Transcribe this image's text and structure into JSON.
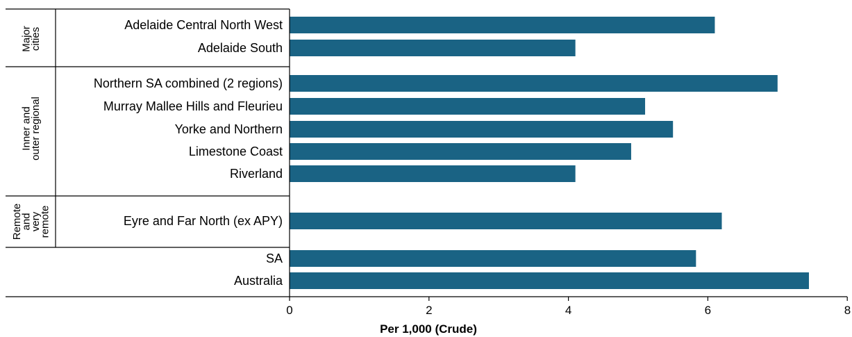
{
  "chart_data": {
    "type": "bar",
    "orientation": "horizontal",
    "title": "",
    "xlabel": "Per 1,000 (Crude)",
    "xlim": [
      0,
      8
    ],
    "xticks": [
      "0",
      "2",
      "4",
      "6",
      "8"
    ],
    "bar_color": "#1a6384",
    "groups": [
      {
        "label_lines": [
          "Major",
          "cities"
        ],
        "categories": [
          "Adelaide Central North West",
          "Adelaide South"
        ],
        "values": [
          6.1,
          4.1
        ]
      },
      {
        "label_lines": [
          "Inner and",
          "outer regional"
        ],
        "categories": [
          "Northern SA combined (2 regions)",
          "Murray Mallee Hills and Fleurieu",
          "Yorke and Northern",
          "Limestone Coast",
          "Riverland"
        ],
        "values": [
          7.0,
          5.1,
          5.5,
          4.9,
          4.1
        ]
      },
      {
        "label_lines": [
          "Remote",
          "and",
          "very",
          "remote"
        ],
        "categories": [
          "Eyre and Far North (ex APY)"
        ],
        "values": [
          6.2
        ]
      },
      {
        "label_lines": [],
        "categories": [
          "SA",
          "Australia"
        ],
        "values": [
          5.83,
          7.45
        ]
      }
    ]
  }
}
